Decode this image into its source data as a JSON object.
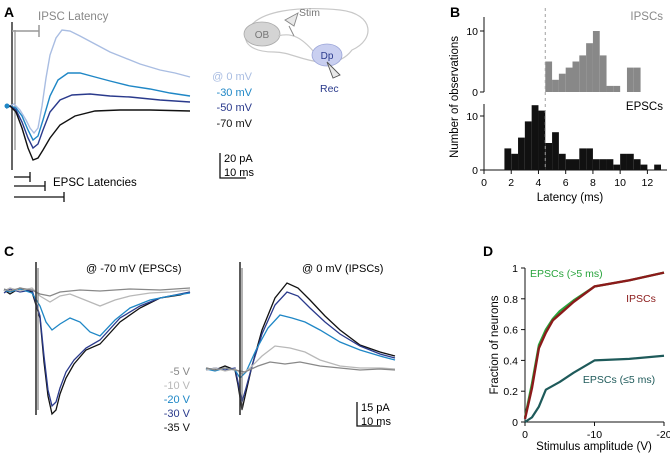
{
  "panels": [
    {
      "letter": "A"
    },
    {
      "letter": "B"
    },
    {
      "letter": "C"
    },
    {
      "letter": "D"
    }
  ],
  "colors": {
    "black": "#111111",
    "navy": "#2a3a8c",
    "blue": "#1f87c6",
    "lightblue": "#a9bde2",
    "gray": "#888888",
    "lightgray": "#b8b8b8",
    "histgray": "#888888",
    "green": "#28a43c",
    "darkred": "#8b1a1a",
    "teal": "#1e5a5a",
    "dashed": "#a0a0a0"
  },
  "panelA": {
    "ipsc_latency_label": "IPSC Latency",
    "epsc_latencies_label": "EPSC Latencies",
    "legend": [
      {
        "label": "@ 0 mV",
        "color": "#a9bde2"
      },
      {
        "label": "-30 mV",
        "color": "#1f87c6"
      },
      {
        "label": "-50 mV",
        "color": "#2a3a8c"
      },
      {
        "label": "-70 mV",
        "color": "#111111"
      }
    ],
    "scale_pA": "20 pA",
    "scale_ms": "10 ms",
    "schematic": {
      "stim": "Stim",
      "ob": "OB",
      "dp": "Dp",
      "rec": "Rec"
    }
  },
  "panelC": {
    "left_title": "@ -70 mV (EPSCs)",
    "right_title": "@ 0 mV (IPSCs)",
    "legend": [
      {
        "label": "-5 V",
        "color": "#888888"
      },
      {
        "label": "-10 V",
        "color": "#b8b8b8"
      },
      {
        "label": "-20 V",
        "color": "#1f87c6"
      },
      {
        "label": "-30 V",
        "color": "#2a3a8c"
      },
      {
        "label": "-35 V",
        "color": "#111111"
      }
    ],
    "scale_pA": "15 pA",
    "scale_ms": "10 ms"
  },
  "chart_data": [
    {
      "type": "bar",
      "name": "B-IPSCs",
      "title": "IPSCs",
      "bin_width": 0.5,
      "x": [
        4.75,
        5.25,
        5.75,
        6.25,
        6.75,
        7.25,
        7.75,
        8.25,
        8.75,
        9.25,
        9.75,
        10.25,
        10.75,
        11.25
      ],
      "values": [
        5,
        2,
        3,
        4,
        5,
        6,
        8,
        10,
        6,
        1,
        1,
        0,
        4,
        4
      ],
      "ylim": [
        0,
        12
      ],
      "yticks": [
        "0",
        "10"
      ],
      "threshold_x": 4.5
    },
    {
      "type": "bar",
      "name": "B-EPSCs",
      "title": "EPSCs",
      "bin_width": 0.5,
      "x": [
        1.75,
        2.25,
        2.75,
        3.25,
        3.75,
        4.25,
        4.75,
        5.25,
        5.75,
        6.25,
        6.75,
        7.25,
        7.75,
        8.25,
        8.75,
        9.25,
        9.75,
        10.25,
        10.75,
        11.25,
        11.75,
        12.75
      ],
      "values": [
        4,
        3,
        6,
        9,
        12,
        11,
        5,
        7,
        3,
        2,
        2,
        4,
        4,
        2,
        2,
        2,
        1,
        3,
        3,
        2,
        1,
        1
      ],
      "ylim": [
        0,
        13
      ],
      "yticks": [
        "0",
        "10"
      ],
      "xlim": [
        0,
        13
      ],
      "xticks": [
        "0",
        "2",
        "4",
        "6",
        "8",
        "10",
        "12"
      ],
      "xlabel": "Latency (ms)",
      "ylabel": "Number of observations",
      "threshold_x": 4.5
    },
    {
      "type": "line",
      "name": "D",
      "xlabel": "Stimulus amplitude (V)",
      "ylabel": "Fraction of neurons",
      "xlim": [
        0,
        -20
      ],
      "ylim": [
        0,
        1
      ],
      "xticks": [
        "0",
        "-10",
        "-20"
      ],
      "yticks": [
        "0",
        "0.2",
        "0.4",
        "0.6",
        "0.8",
        "1"
      ],
      "series": [
        {
          "name": "EPSCs (>5 ms)",
          "color": "#28a43c",
          "x": [
            0,
            -1,
            -2,
            -3,
            -4,
            -5,
            -7,
            -10,
            -15,
            -20
          ],
          "y": [
            0.03,
            0.25,
            0.5,
            0.6,
            0.67,
            0.72,
            0.79,
            0.88,
            0.92,
            0.97
          ]
        },
        {
          "name": "IPSCs",
          "color": "#8b1a1a",
          "x": [
            0,
            -1,
            -2,
            -3,
            -4,
            -5,
            -7,
            -10,
            -15,
            -20
          ],
          "y": [
            0.02,
            0.22,
            0.48,
            0.58,
            0.66,
            0.7,
            0.78,
            0.88,
            0.92,
            0.97
          ]
        },
        {
          "name": "EPSCs (≤5 ms)",
          "color": "#1e5a5a",
          "x": [
            0,
            -1,
            -2,
            -3,
            -5,
            -7,
            -10,
            -15,
            -20
          ],
          "y": [
            0,
            0.03,
            0.1,
            0.21,
            0.26,
            0.32,
            0.4,
            0.41,
            0.43
          ]
        }
      ]
    }
  ]
}
